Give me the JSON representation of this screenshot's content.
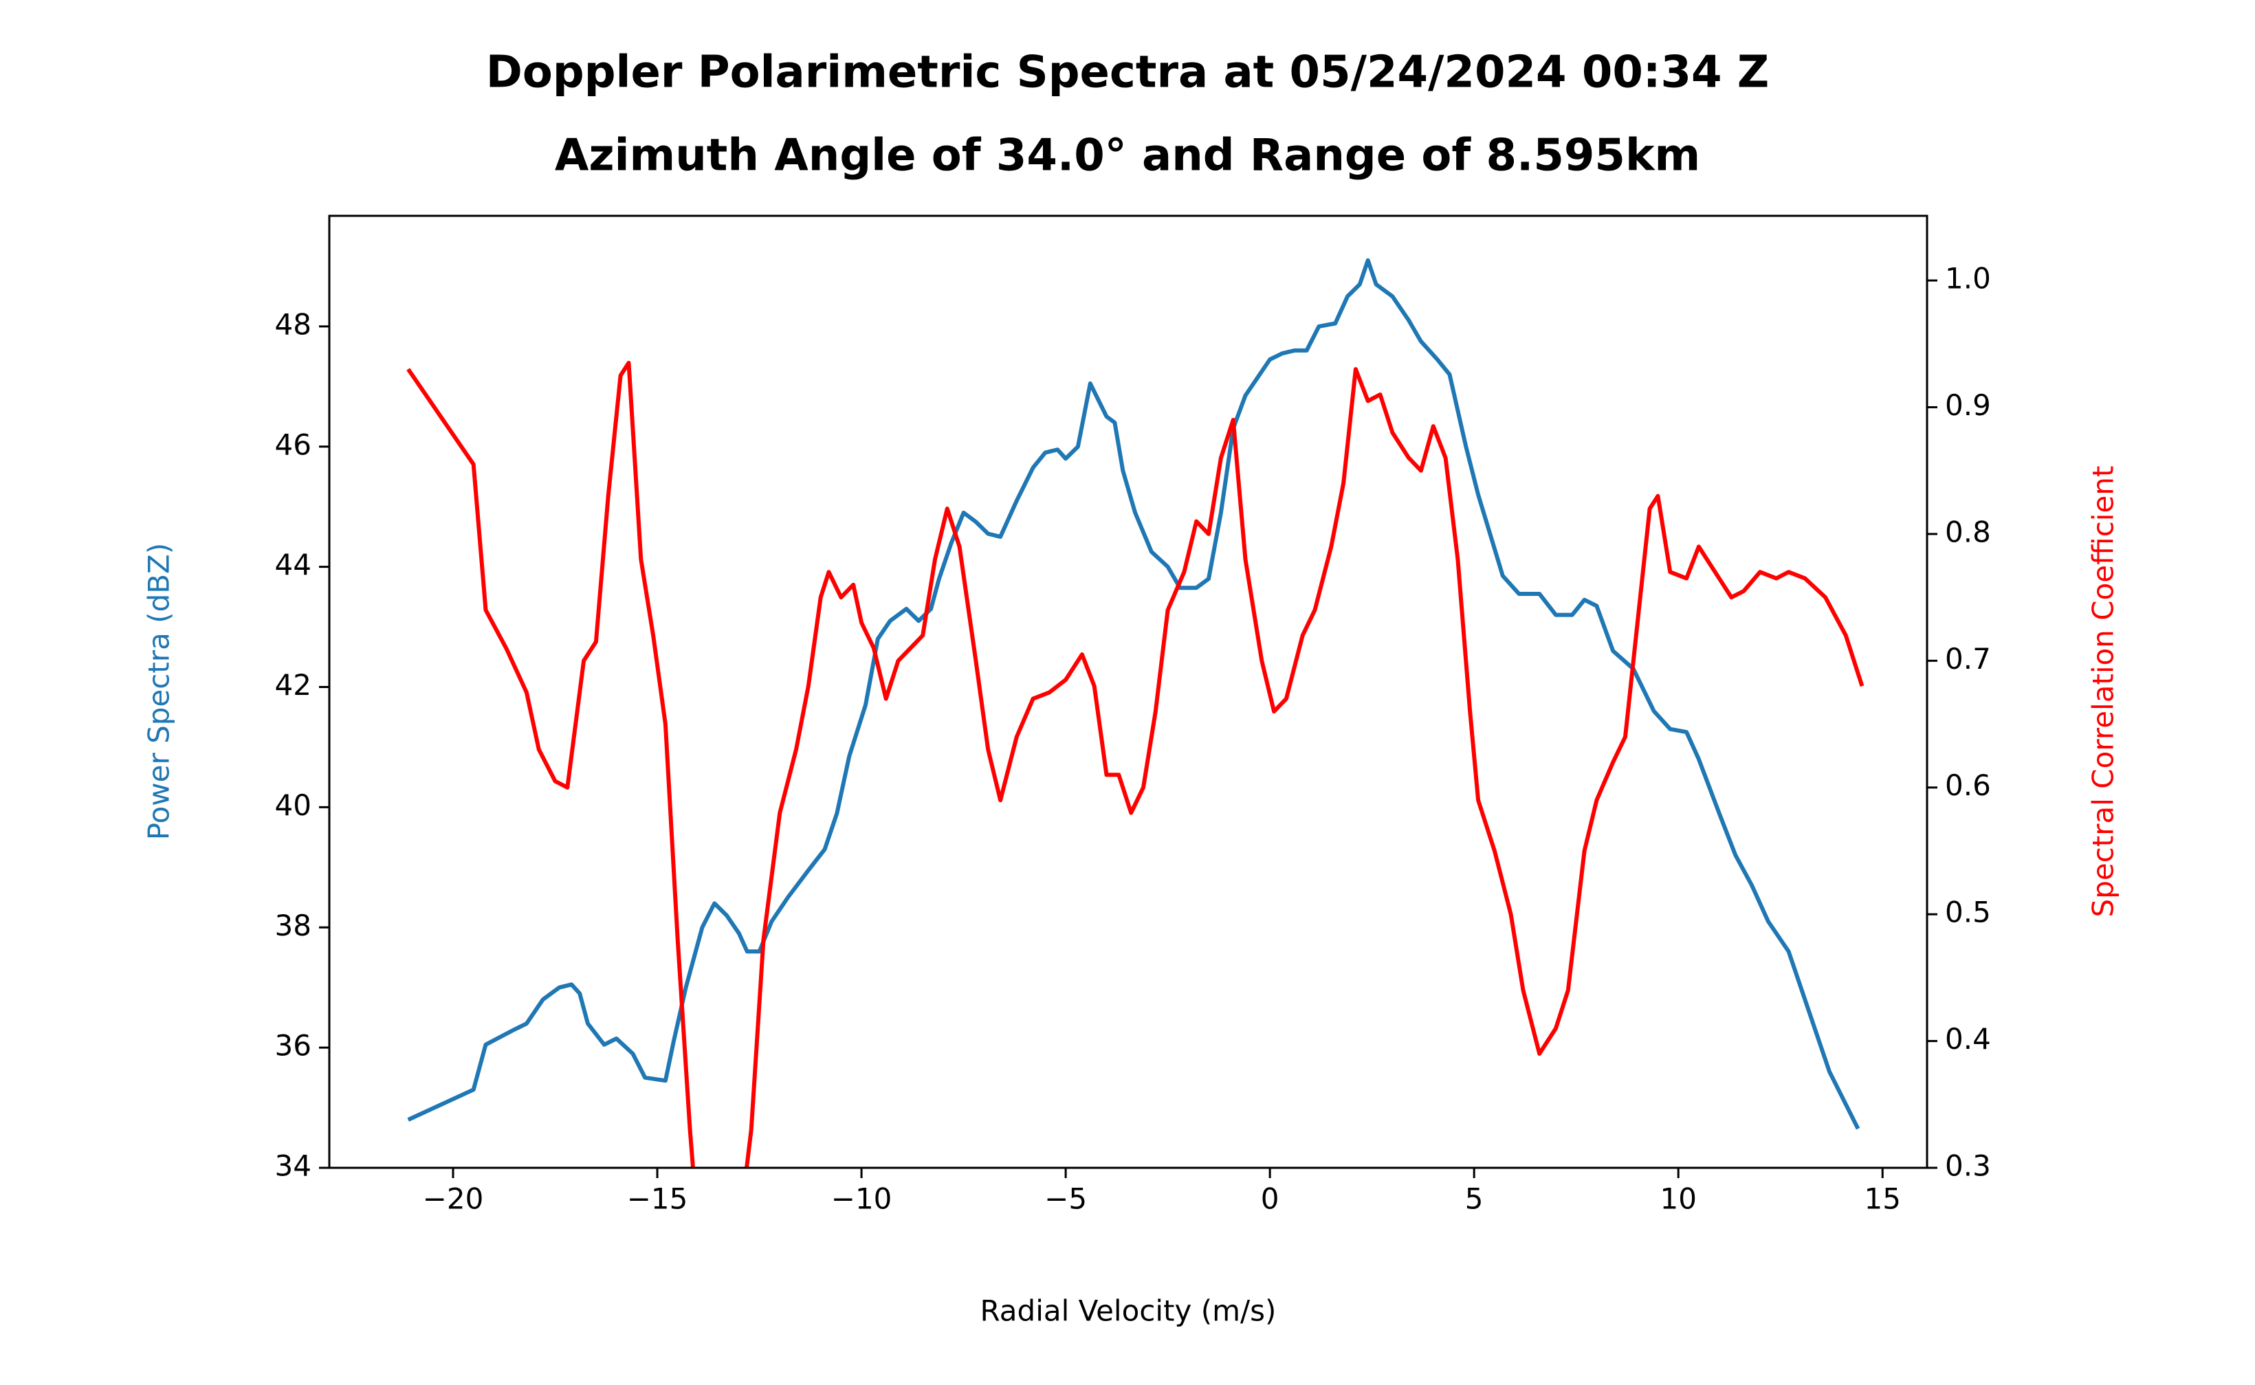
{
  "chart_data": {
    "type": "line",
    "title": "Doppler Polarimetric Spectra at 05/24/2024 00:34 Z",
    "subtitle": "Azimuth Angle of 34.0° and Range of 8.595km",
    "xlabel": "Radial Velocity (m/s)",
    "ylabel": "Power Spectra (dBZ)",
    "y2label": "Spectral Correlation Coefficient",
    "xlim": [
      -23.03,
      16.09
    ],
    "xticks": [
      {
        "value": -20,
        "label": "−20"
      },
      {
        "value": -15,
        "label": "−15"
      },
      {
        "value": -10,
        "label": "−10"
      },
      {
        "value": -5,
        "label": "−5"
      },
      0,
      5,
      10,
      15
    ],
    "ylim": [
      34,
      49.84
    ],
    "yticks": [
      34,
      36,
      38,
      40,
      42,
      44,
      46,
      48
    ],
    "y2lim": [
      0.3,
      1.051
    ],
    "y2ticks": [
      0.3,
      0.4,
      0.5,
      0.6,
      0.7,
      0.8,
      0.9,
      {
        "value": 1.0,
        "label": "1.0"
      }
    ],
    "series": [
      {
        "name": "Power Spectra (dBZ)",
        "color": "#1f77b4",
        "x": [
          -21.1,
          -19.5,
          -19.2,
          -18.5,
          -18.2,
          -17.8,
          -17.4,
          -17.1,
          -16.9,
          -16.7,
          -16.3,
          -16.0,
          -15.6,
          -15.3,
          -14.8,
          -14.6,
          -14.3,
          -13.9,
          -13.6,
          -13.3,
          -13.0,
          -12.8,
          -12.5,
          -12.2,
          -11.8,
          -11.3,
          -10.9,
          -10.6,
          -10.3,
          -9.9,
          -9.6,
          -9.3,
          -8.9,
          -8.6,
          -8.3,
          -8.1,
          -7.8,
          -7.5,
          -7.2,
          -6.9,
          -6.6,
          -6.2,
          -5.8,
          -5.5,
          -5.2,
          -5.0,
          -4.7,
          -4.4,
          -4.0,
          -3.8,
          -3.6,
          -3.3,
          -2.9,
          -2.5,
          -2.2,
          -1.8,
          -1.5,
          -1.2,
          -0.9,
          -0.6,
          -0.3,
          0.0,
          0.3,
          0.6,
          0.9,
          1.2,
          1.6,
          1.9,
          2.2,
          2.4,
          2.6,
          3.0,
          3.4,
          3.7,
          4.1,
          4.4,
          4.8,
          5.1,
          5.5,
          5.7,
          6.1,
          6.6,
          7.0,
          7.4,
          7.7,
          8.0,
          8.4,
          8.9,
          9.4,
          9.8,
          10.2,
          10.5,
          11.0,
          11.4,
          11.8,
          12.2,
          12.7,
          13.2,
          13.7,
          14.4
        ],
        "values": [
          34.8,
          35.3,
          36.05,
          36.3,
          36.4,
          36.8,
          37.0,
          37.05,
          36.9,
          36.4,
          36.05,
          36.15,
          35.9,
          35.5,
          35.45,
          36.1,
          37.0,
          38.0,
          38.4,
          38.2,
          37.9,
          37.6,
          37.6,
          38.1,
          38.5,
          38.95,
          39.3,
          39.9,
          40.85,
          41.7,
          42.8,
          43.1,
          43.3,
          43.1,
          43.3,
          43.8,
          44.4,
          44.9,
          44.75,
          44.55,
          44.5,
          45.1,
          45.65,
          45.9,
          45.95,
          45.8,
          46.0,
          47.05,
          46.5,
          46.4,
          45.6,
          44.9,
          44.25,
          44.0,
          43.65,
          43.65,
          43.8,
          44.9,
          46.3,
          46.85,
          47.15,
          47.45,
          47.55,
          47.6,
          47.6,
          48.0,
          48.05,
          48.5,
          48.7,
          49.1,
          48.7,
          48.5,
          48.1,
          47.75,
          47.45,
          47.2,
          46.0,
          45.2,
          44.3,
          43.85,
          43.55,
          43.55,
          43.2,
          43.2,
          43.45,
          43.35,
          42.6,
          42.3,
          41.6,
          41.3,
          41.25,
          40.8,
          39.9,
          39.2,
          38.7,
          38.1,
          37.6,
          36.6,
          35.6,
          34.65
        ]
      },
      {
        "name": "Spectral Correlation Coefficient",
        "color": "#ff0000",
        "axis": "y2",
        "x": [
          -21.1,
          -19.5,
          -19.2,
          -18.7,
          -18.2,
          -17.9,
          -17.5,
          -17.2,
          -16.8,
          -16.5,
          -16.2,
          -15.9,
          -15.7,
          -15.4,
          -15.1,
          -14.8,
          -14.5,
          -14.2,
          -14.0,
          -13.0,
          -12.7,
          -12.4,
          -12.0,
          -11.6,
          -11.3,
          -11.0,
          -10.8,
          -10.5,
          -10.2,
          -10.0,
          -9.7,
          -9.4,
          -9.1,
          -8.8,
          -8.5,
          -8.2,
          -7.9,
          -7.6,
          -7.2,
          -6.9,
          -6.6,
          -6.2,
          -5.8,
          -5.4,
          -5.0,
          -4.6,
          -4.3,
          -4.0,
          -3.7,
          -3.4,
          -3.1,
          -2.8,
          -2.5,
          -2.1,
          -1.8,
          -1.5,
          -1.2,
          -0.9,
          -0.6,
          -0.2,
          0.1,
          0.4,
          0.8,
          1.1,
          1.5,
          1.8,
          2.1,
          2.4,
          2.7,
          3.0,
          3.4,
          3.7,
          4.0,
          4.3,
          4.6,
          4.9,
          5.1,
          5.5,
          5.9,
          6.2,
          6.6,
          7.0,
          7.3,
          7.7,
          8.0,
          8.4,
          8.7,
          9.0,
          9.3,
          9.5,
          9.8,
          10.2,
          10.5,
          10.9,
          11.3,
          11.6,
          12.0,
          12.4,
          12.7,
          13.1,
          13.6,
          14.1,
          14.5
        ],
        "values": [
          0.93,
          0.855,
          0.74,
          0.71,
          0.675,
          0.63,
          0.605,
          0.6,
          0.7,
          0.715,
          0.83,
          0.925,
          0.935,
          0.78,
          0.72,
          0.65,
          0.48,
          0.33,
          0.25,
          0.25,
          0.33,
          0.48,
          0.58,
          0.63,
          0.68,
          0.75,
          0.77,
          0.75,
          0.76,
          0.73,
          0.71,
          0.67,
          0.7,
          0.71,
          0.72,
          0.78,
          0.82,
          0.79,
          0.7,
          0.63,
          0.59,
          0.64,
          0.67,
          0.675,
          0.685,
          0.705,
          0.68,
          0.61,
          0.61,
          0.58,
          0.6,
          0.66,
          0.74,
          0.77,
          0.81,
          0.8,
          0.86,
          0.89,
          0.78,
          0.7,
          0.66,
          0.67,
          0.72,
          0.74,
          0.79,
          0.84,
          0.93,
          0.905,
          0.91,
          0.88,
          0.86,
          0.85,
          0.885,
          0.86,
          0.78,
          0.66,
          0.59,
          0.55,
          0.5,
          0.44,
          0.39,
          0.41,
          0.44,
          0.55,
          0.59,
          0.62,
          0.64,
          0.73,
          0.82,
          0.83,
          0.77,
          0.765,
          0.79,
          0.77,
          0.75,
          0.755,
          0.77,
          0.765,
          0.77,
          0.765,
          0.75,
          0.72,
          0.68
        ]
      }
    ]
  }
}
